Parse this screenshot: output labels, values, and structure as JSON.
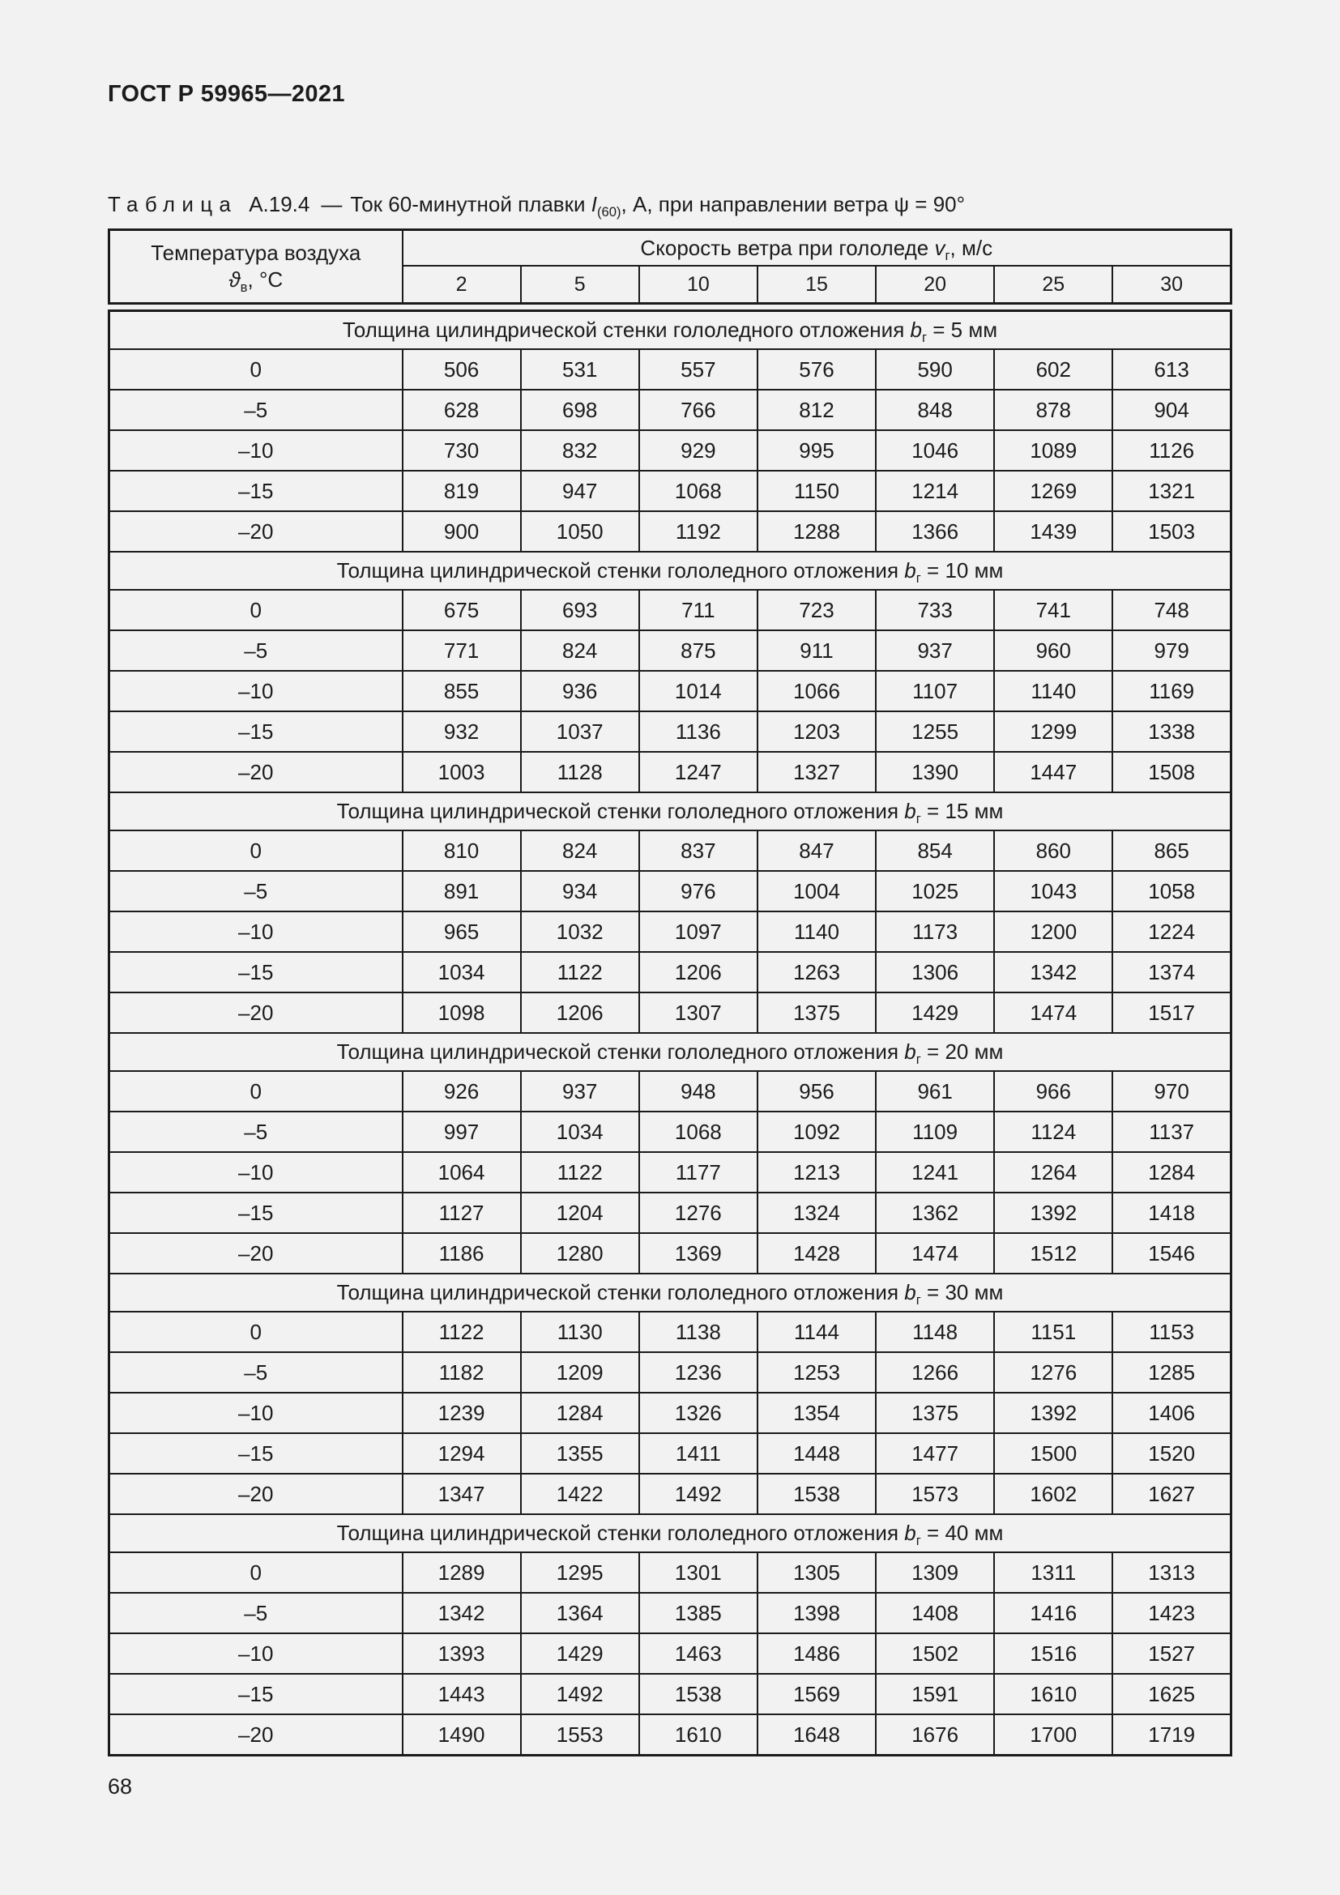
{
  "page": {
    "header": "ГОСТ Р 59965—2021",
    "page_number": "68"
  },
  "table": {
    "caption": {
      "label": "Таблица",
      "number": "А.19.4",
      "dash": "—",
      "text_before": "Ток 60-минутной плавки ",
      "symbol": "I",
      "symbol_sub": "(60)",
      "text_after": ", А, при направлении ветра ψ = 90°"
    },
    "temp_header": {
      "line1": "Температура воздуха",
      "symbol": "ϑ",
      "symbol_sub": "в",
      "suffix": ", °С"
    },
    "wind_header": {
      "prefix": "Скорость ветра при гололеде ",
      "symbol": "v",
      "symbol_sub": "г",
      "suffix": ", м/с"
    },
    "wind_speeds": [
      "2",
      "5",
      "10",
      "15",
      "20",
      "25",
      "30"
    ],
    "sections": [
      {
        "band": {
          "prefix": "Толщина цилиндрической стенки гололедного отложения ",
          "symbol": "b",
          "symbol_sub": "г",
          "suffix": " = 5 мм"
        },
        "rows": [
          {
            "temp": "0",
            "values": [
              "506",
              "531",
              "557",
              "576",
              "590",
              "602",
              "613"
            ]
          },
          {
            "temp": "–5",
            "values": [
              "628",
              "698",
              "766",
              "812",
              "848",
              "878",
              "904"
            ]
          },
          {
            "temp": "–10",
            "values": [
              "730",
              "832",
              "929",
              "995",
              "1046",
              "1089",
              "1126"
            ]
          },
          {
            "temp": "–15",
            "values": [
              "819",
              "947",
              "1068",
              "1150",
              "1214",
              "1269",
              "1321"
            ]
          },
          {
            "temp": "–20",
            "values": [
              "900",
              "1050",
              "1192",
              "1288",
              "1366",
              "1439",
              "1503"
            ]
          }
        ]
      },
      {
        "band": {
          "prefix": "Толщина цилиндрической стенки гололедного отложения ",
          "symbol": "b",
          "symbol_sub": "г",
          "suffix": " = 10 мм"
        },
        "rows": [
          {
            "temp": "0",
            "values": [
              "675",
              "693",
              "711",
              "723",
              "733",
              "741",
              "748"
            ]
          },
          {
            "temp": "–5",
            "values": [
              "771",
              "824",
              "875",
              "911",
              "937",
              "960",
              "979"
            ]
          },
          {
            "temp": "–10",
            "values": [
              "855",
              "936",
              "1014",
              "1066",
              "1107",
              "1140",
              "1169"
            ]
          },
          {
            "temp": "–15",
            "values": [
              "932",
              "1037",
              "1136",
              "1203",
              "1255",
              "1299",
              "1338"
            ]
          },
          {
            "temp": "–20",
            "values": [
              "1003",
              "1128",
              "1247",
              "1327",
              "1390",
              "1447",
              "1508"
            ]
          }
        ]
      },
      {
        "band": {
          "prefix": "Толщина цилиндрической стенки гололедного отложения ",
          "symbol": "b",
          "symbol_sub": "г",
          "suffix": " = 15 мм"
        },
        "rows": [
          {
            "temp": "0",
            "values": [
              "810",
              "824",
              "837",
              "847",
              "854",
              "860",
              "865"
            ]
          },
          {
            "temp": "–5",
            "values": [
              "891",
              "934",
              "976",
              "1004",
              "1025",
              "1043",
              "1058"
            ]
          },
          {
            "temp": "–10",
            "values": [
              "965",
              "1032",
              "1097",
              "1140",
              "1173",
              "1200",
              "1224"
            ]
          },
          {
            "temp": "–15",
            "values": [
              "1034",
              "1122",
              "1206",
              "1263",
              "1306",
              "1342",
              "1374"
            ]
          },
          {
            "temp": "–20",
            "values": [
              "1098",
              "1206",
              "1307",
              "1375",
              "1429",
              "1474",
              "1517"
            ]
          }
        ]
      },
      {
        "band": {
          "prefix": "Толщина цилиндрической стенки гололедного отложения ",
          "symbol": "b",
          "symbol_sub": "г",
          "suffix": " = 20 мм"
        },
        "rows": [
          {
            "temp": "0",
            "values": [
              "926",
              "937",
              "948",
              "956",
              "961",
              "966",
              "970"
            ]
          },
          {
            "temp": "–5",
            "values": [
              "997",
              "1034",
              "1068",
              "1092",
              "1109",
              "1124",
              "1137"
            ]
          },
          {
            "temp": "–10",
            "values": [
              "1064",
              "1122",
              "1177",
              "1213",
              "1241",
              "1264",
              "1284"
            ]
          },
          {
            "temp": "–15",
            "values": [
              "1127",
              "1204",
              "1276",
              "1324",
              "1362",
              "1392",
              "1418"
            ]
          },
          {
            "temp": "–20",
            "values": [
              "1186",
              "1280",
              "1369",
              "1428",
              "1474",
              "1512",
              "1546"
            ]
          }
        ]
      },
      {
        "band": {
          "prefix": "Толщина цилиндрической стенки гололедного отложения ",
          "symbol": "b",
          "symbol_sub": "г",
          "suffix": " = 30 мм"
        },
        "rows": [
          {
            "temp": "0",
            "values": [
              "1122",
              "1130",
              "1138",
              "1144",
              "1148",
              "1151",
              "1153"
            ]
          },
          {
            "temp": "–5",
            "values": [
              "1182",
              "1209",
              "1236",
              "1253",
              "1266",
              "1276",
              "1285"
            ]
          },
          {
            "temp": "–10",
            "values": [
              "1239",
              "1284",
              "1326",
              "1354",
              "1375",
              "1392",
              "1406"
            ]
          },
          {
            "temp": "–15",
            "values": [
              "1294",
              "1355",
              "1411",
              "1448",
              "1477",
              "1500",
              "1520"
            ]
          },
          {
            "temp": "–20",
            "values": [
              "1347",
              "1422",
              "1492",
              "1538",
              "1573",
              "1602",
              "1627"
            ]
          }
        ]
      },
      {
        "band": {
          "prefix": "Толщина цилиндрической стенки гололедного отложения ",
          "symbol": "b",
          "symbol_sub": "г",
          "suffix": " = 40 мм"
        },
        "rows": [
          {
            "temp": "0",
            "values": [
              "1289",
              "1295",
              "1301",
              "1305",
              "1309",
              "1311",
              "1313"
            ]
          },
          {
            "temp": "–5",
            "values": [
              "1342",
              "1364",
              "1385",
              "1398",
              "1408",
              "1416",
              "1423"
            ]
          },
          {
            "temp": "–10",
            "values": [
              "1393",
              "1429",
              "1463",
              "1486",
              "1502",
              "1516",
              "1527"
            ]
          },
          {
            "temp": "–15",
            "values": [
              "1443",
              "1492",
              "1538",
              "1569",
              "1591",
              "1610",
              "1625"
            ]
          },
          {
            "temp": "–20",
            "values": [
              "1490",
              "1553",
              "1610",
              "1648",
              "1676",
              "1700",
              "1719"
            ]
          }
        ]
      }
    ]
  }
}
